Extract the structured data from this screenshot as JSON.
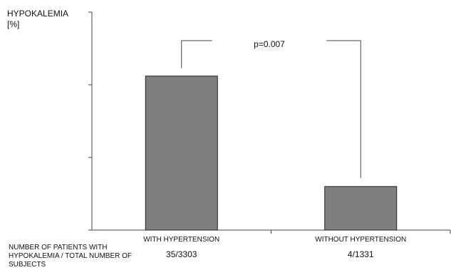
{
  "chart_data": {
    "type": "bar",
    "title": "",
    "ylabel_line1": "HYPOKALEMIA",
    "ylabel_line2": "[%]",
    "xlabel": "",
    "categories": [
      "WITH HYPERTENSION",
      "WITHOUT HYPERTENSION"
    ],
    "ratios": [
      "35/3303",
      "4/1331"
    ],
    "values": [
      1.06,
      0.3
    ],
    "ylim": [
      0,
      1.5
    ],
    "yticks": [
      0,
      0.5,
      1.0,
      1.5
    ],
    "ytick_labels_shown": false,
    "annotation": "p=0.007",
    "bar_color": "#7f7f7f",
    "grid": false
  },
  "footer_label": "NUMBER OF PATIENTS WITH HYPOKALEMIA / TOTAL NUMBER OF SUBJECTS"
}
